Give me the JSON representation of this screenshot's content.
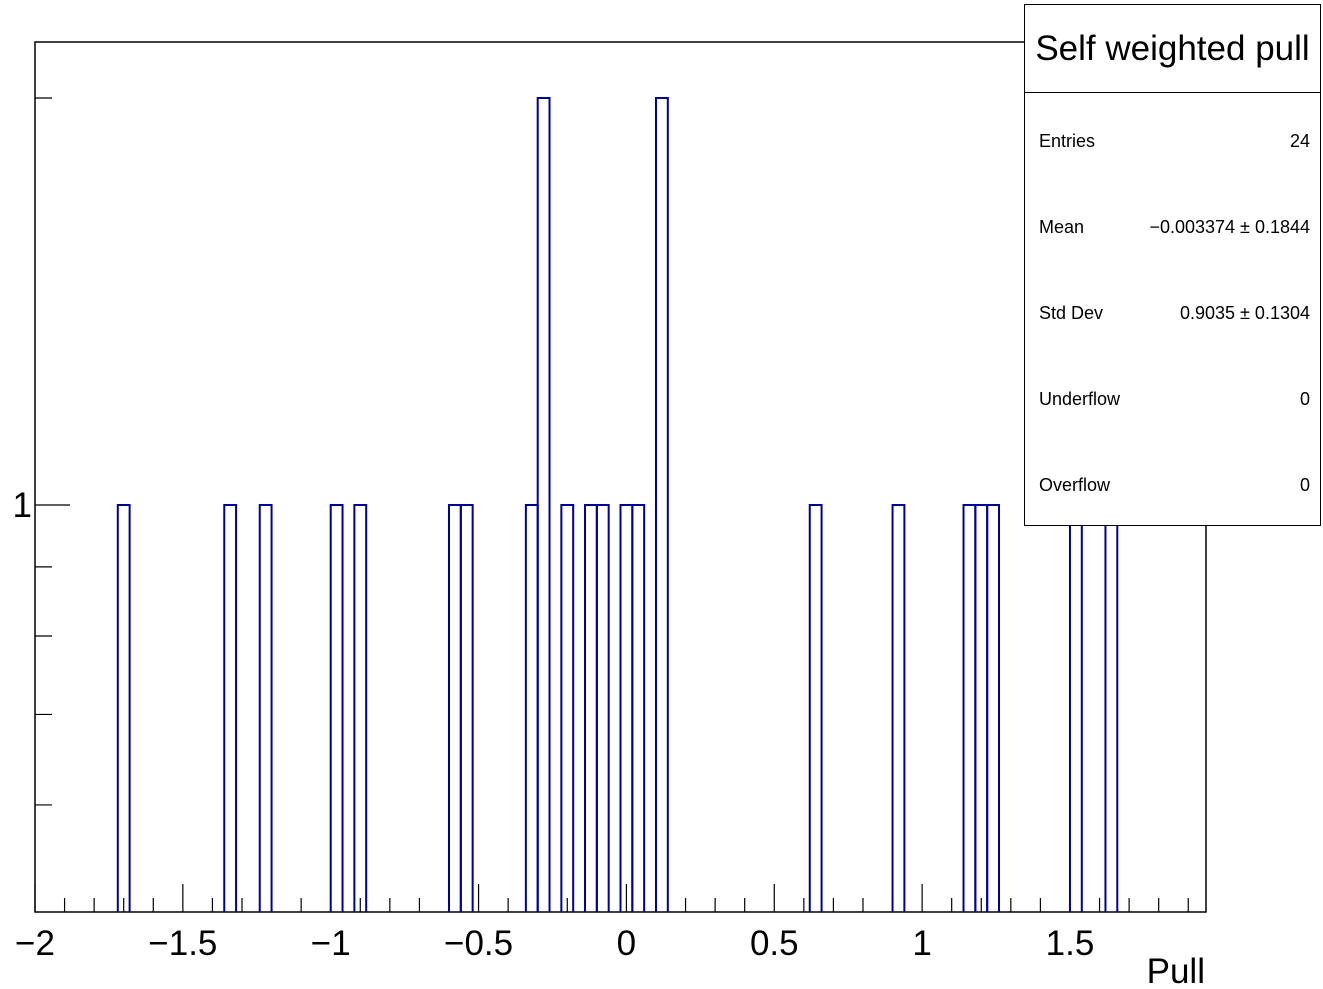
{
  "chart_data": {
    "type": "bar",
    "histogram_style": "step",
    "xlabel": "Pull",
    "ylabel": "",
    "xlim": [
      -2,
      1.96
    ],
    "ylim": [
      0.5,
      2.2
    ],
    "ytick_labels": [
      {
        "value": 1,
        "label": "1"
      }
    ],
    "xtick_labels": [
      {
        "value": -2,
        "label": "−2"
      },
      {
        "value": -1.5,
        "label": "−1.5"
      },
      {
        "value": -1,
        "label": "−1"
      },
      {
        "value": -0.5,
        "label": "−0.5"
      },
      {
        "value": 0,
        "label": "0"
      },
      {
        "value": 0.5,
        "label": "0.5"
      },
      {
        "value": 1,
        "label": "1"
      },
      {
        "value": 1.5,
        "label": "1.5"
      }
    ],
    "bin_width": 0.04,
    "bins": [
      {
        "x0": -1.72,
        "value": 1
      },
      {
        "x0": -1.36,
        "value": 1
      },
      {
        "x0": -1.24,
        "value": 1
      },
      {
        "x0": -1.0,
        "value": 1
      },
      {
        "x0": -0.92,
        "value": 1
      },
      {
        "x0": -0.6,
        "value": 1
      },
      {
        "x0": -0.56,
        "value": 1
      },
      {
        "x0": -0.34,
        "value": 1
      },
      {
        "x0": -0.3,
        "value": 2
      },
      {
        "x0": -0.22,
        "value": 1
      },
      {
        "x0": -0.14,
        "value": 1
      },
      {
        "x0": -0.1,
        "value": 1
      },
      {
        "x0": -0.02,
        "value": 1
      },
      {
        "x0": 0.02,
        "value": 1
      },
      {
        "x0": 0.1,
        "value": 2
      },
      {
        "x0": 0.62,
        "value": 1
      },
      {
        "x0": 0.9,
        "value": 1
      },
      {
        "x0": 1.14,
        "value": 1
      },
      {
        "x0": 1.18,
        "value": 1
      },
      {
        "x0": 1.22,
        "value": 1
      },
      {
        "x0": 1.5,
        "value": 1
      },
      {
        "x0": 1.62,
        "value": 1
      }
    ],
    "line_color": "#000099",
    "grid": false,
    "legend": "none"
  },
  "stats": {
    "title": "Self weighted pull",
    "rows": [
      {
        "label": "Entries",
        "value": "24"
      },
      {
        "label": "Mean",
        "value": "−0.003374 ± 0.1844"
      },
      {
        "label": "Std Dev",
        "value": "0.9035 ± 0.1304"
      },
      {
        "label": "Underflow",
        "value": "0"
      },
      {
        "label": "Overflow",
        "value": "0"
      }
    ]
  }
}
